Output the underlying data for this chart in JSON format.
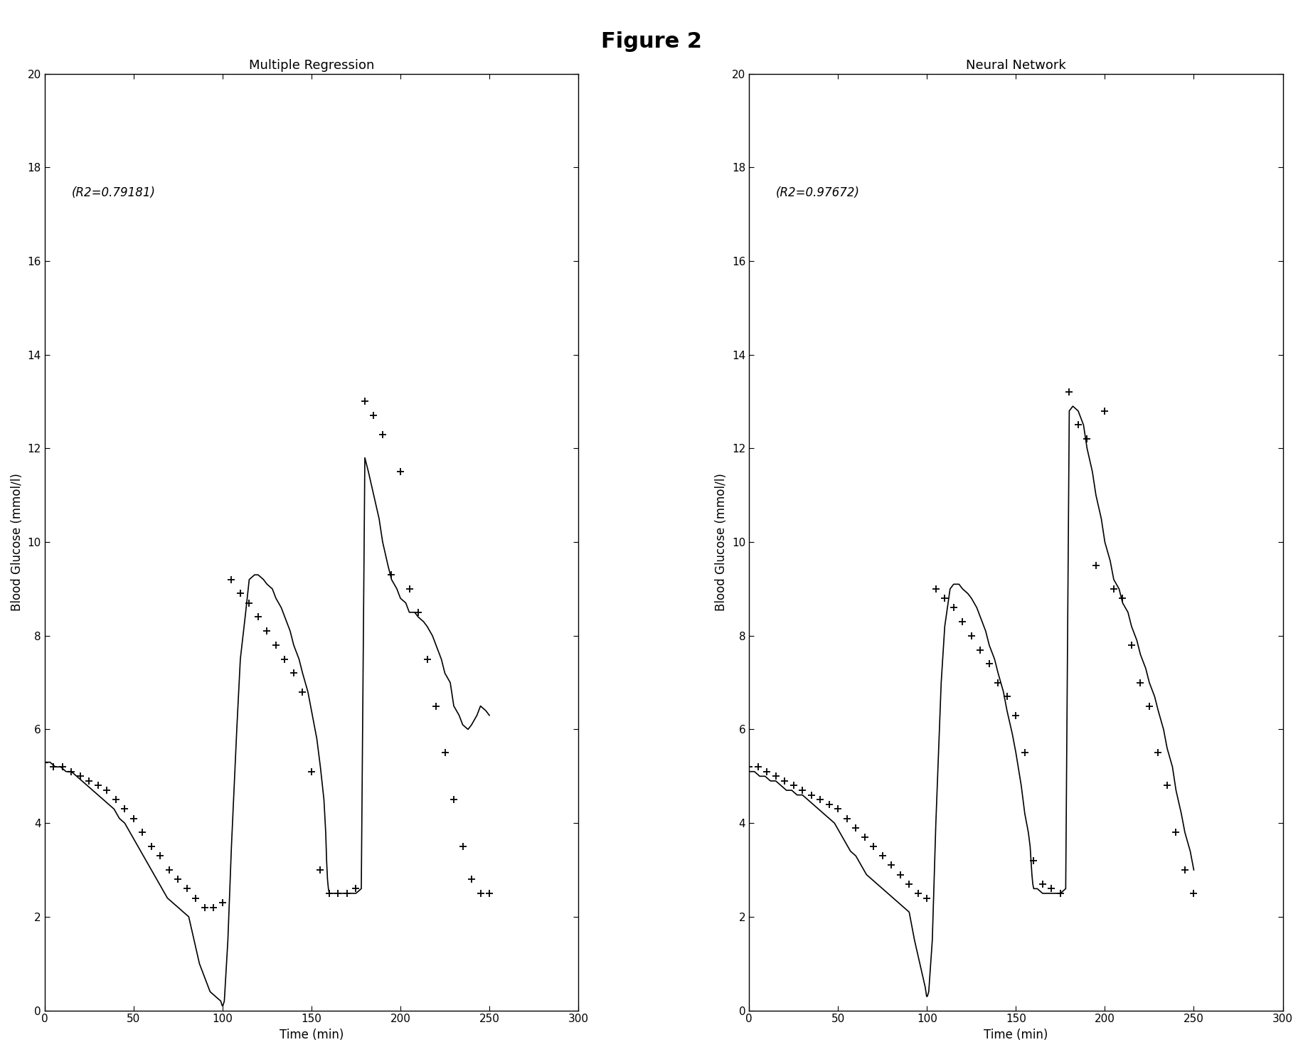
{
  "title": "Figure 2",
  "plot1_title": "Multiple Regression",
  "plot2_title": "Neural Network",
  "r2_label1": "(R2=0.79181)",
  "r2_label2": "(R2=0.97672)",
  "xlabel": "Time (min)",
  "ylabel": "Blood Glucose (mmol/l)",
  "xlim": [
    0,
    300
  ],
  "ylim": [
    0,
    20
  ],
  "xticks": [
    0,
    50,
    100,
    150,
    200,
    250,
    300
  ],
  "yticks": [
    0,
    2,
    4,
    6,
    8,
    10,
    12,
    14,
    16,
    18,
    20
  ],
  "line_color": "#000000",
  "marker_color": "#000000",
  "background_color": "#ffffff",
  "title_fontsize": 22,
  "subtitle_fontsize": 13,
  "label_fontsize": 12,
  "tick_fontsize": 11,
  "annotation_fontsize": 12,
  "mr_line_x": [
    0,
    3,
    6,
    9,
    12,
    15,
    18,
    21,
    24,
    27,
    30,
    33,
    36,
    39,
    42,
    45,
    48,
    51,
    54,
    57,
    60,
    63,
    66,
    69,
    72,
    75,
    78,
    81,
    84,
    87,
    90,
    93,
    96,
    99,
    99.8,
    100.2,
    101,
    103,
    105,
    108,
    110,
    113,
    115,
    118,
    120,
    123,
    125,
    128,
    130,
    133,
    135,
    138,
    140,
    143,
    145,
    148,
    150,
    153,
    155,
    157,
    158,
    158.5,
    159,
    159.5,
    160,
    162,
    165,
    168,
    170,
    173,
    175,
    178,
    180,
    182,
    185,
    188,
    190,
    193,
    195,
    198,
    200,
    203,
    205,
    208,
    210,
    213,
    215,
    218,
    220,
    223,
    225,
    228,
    230,
    233,
    235,
    238,
    240,
    243,
    245,
    248,
    250
  ],
  "mr_line_y": [
    5.3,
    5.3,
    5.2,
    5.2,
    5.1,
    5.1,
    5.0,
    4.9,
    4.8,
    4.7,
    4.6,
    4.5,
    4.4,
    4.3,
    4.1,
    4.0,
    3.8,
    3.6,
    3.4,
    3.2,
    3.0,
    2.8,
    2.6,
    2.4,
    2.3,
    2.2,
    2.1,
    2.0,
    1.5,
    1.0,
    0.7,
    0.4,
    0.3,
    0.2,
    0.1,
    0.1,
    0.2,
    1.5,
    3.5,
    6.0,
    7.5,
    8.5,
    9.2,
    9.3,
    9.3,
    9.2,
    9.1,
    9.0,
    8.8,
    8.6,
    8.4,
    8.1,
    7.8,
    7.5,
    7.2,
    6.8,
    6.4,
    5.8,
    5.2,
    4.5,
    3.8,
    3.2,
    2.8,
    2.6,
    2.5,
    2.5,
    2.5,
    2.5,
    2.5,
    2.5,
    2.5,
    2.6,
    11.8,
    11.5,
    11.0,
    10.5,
    10.0,
    9.5,
    9.2,
    9.0,
    8.8,
    8.7,
    8.5,
    8.5,
    8.4,
    8.3,
    8.2,
    8.0,
    7.8,
    7.5,
    7.2,
    7.0,
    6.5,
    6.3,
    6.1,
    6.0,
    6.1,
    6.3,
    6.5,
    6.4,
    6.3
  ],
  "mr_pts_x": [
    0,
    5,
    10,
    15,
    20,
    25,
    30,
    35,
    40,
    45,
    50,
    55,
    60,
    65,
    70,
    75,
    80,
    85,
    90,
    95,
    100,
    105,
    110,
    115,
    120,
    125,
    130,
    135,
    140,
    145,
    150,
    155,
    160,
    165,
    170,
    175,
    180,
    185,
    190,
    195,
    200,
    205,
    210,
    215,
    220,
    225,
    230,
    235,
    240,
    245,
    250
  ],
  "mr_pts_y": [
    5.3,
    5.2,
    5.2,
    5.1,
    5.0,
    4.9,
    4.8,
    4.7,
    4.5,
    4.3,
    4.1,
    3.8,
    3.5,
    3.3,
    3.0,
    2.8,
    2.6,
    2.4,
    2.2,
    2.2,
    2.3,
    9.2,
    8.9,
    8.7,
    8.4,
    8.1,
    7.8,
    7.5,
    7.2,
    6.8,
    5.1,
    3.0,
    2.5,
    2.5,
    2.5,
    2.6,
    13.0,
    12.7,
    12.3,
    9.3,
    11.5,
    9.0,
    8.5,
    7.5,
    6.5,
    5.5,
    4.5,
    3.5,
    2.8,
    2.5,
    2.5
  ],
  "nn_line_x": [
    0,
    3,
    6,
    9,
    12,
    15,
    18,
    21,
    24,
    27,
    30,
    33,
    36,
    39,
    42,
    45,
    48,
    51,
    54,
    57,
    60,
    63,
    66,
    69,
    72,
    75,
    78,
    81,
    84,
    87,
    90,
    93,
    96,
    99,
    99.8,
    100.2,
    101,
    103,
    105,
    108,
    110,
    113,
    115,
    118,
    120,
    123,
    125,
    128,
    130,
    133,
    135,
    138,
    140,
    143,
    145,
    148,
    150,
    153,
    155,
    157,
    158,
    158.5,
    159,
    159.5,
    160,
    162,
    165,
    168,
    170,
    173,
    175,
    178,
    180,
    182,
    185,
    188,
    190,
    193,
    195,
    198,
    200,
    203,
    205,
    208,
    210,
    213,
    215,
    218,
    220,
    223,
    225,
    228,
    230,
    233,
    235,
    238,
    240,
    243,
    245,
    248,
    250
  ],
  "nn_line_y": [
    5.1,
    5.1,
    5.0,
    5.0,
    4.9,
    4.9,
    4.8,
    4.7,
    4.7,
    4.6,
    4.6,
    4.5,
    4.4,
    4.3,
    4.2,
    4.1,
    4.0,
    3.8,
    3.6,
    3.4,
    3.3,
    3.1,
    2.9,
    2.8,
    2.7,
    2.6,
    2.5,
    2.4,
    2.3,
    2.2,
    2.1,
    1.5,
    1.0,
    0.5,
    0.3,
    0.3,
    0.4,
    1.5,
    4.0,
    7.0,
    8.2,
    9.0,
    9.1,
    9.1,
    9.0,
    8.9,
    8.8,
    8.6,
    8.4,
    8.1,
    7.8,
    7.5,
    7.2,
    6.8,
    6.4,
    5.9,
    5.5,
    4.8,
    4.2,
    3.8,
    3.5,
    3.2,
    2.9,
    2.7,
    2.6,
    2.6,
    2.5,
    2.5,
    2.5,
    2.5,
    2.5,
    2.6,
    12.8,
    12.9,
    12.8,
    12.5,
    12.0,
    11.5,
    11.0,
    10.5,
    10.0,
    9.6,
    9.2,
    9.0,
    8.7,
    8.5,
    8.2,
    7.9,
    7.6,
    7.3,
    7.0,
    6.7,
    6.4,
    6.0,
    5.6,
    5.2,
    4.7,
    4.2,
    3.8,
    3.4,
    3.0
  ],
  "nn_pts_x": [
    0,
    5,
    10,
    15,
    20,
    25,
    30,
    35,
    40,
    45,
    50,
    55,
    60,
    65,
    70,
    75,
    80,
    85,
    90,
    95,
    100,
    105,
    110,
    115,
    120,
    125,
    130,
    135,
    140,
    145,
    150,
    155,
    160,
    165,
    170,
    175,
    180,
    185,
    190,
    195,
    200,
    205,
    210,
    215,
    220,
    225,
    230,
    235,
    240,
    245,
    250
  ],
  "nn_pts_y": [
    5.2,
    5.2,
    5.1,
    5.0,
    4.9,
    4.8,
    4.7,
    4.6,
    4.5,
    4.4,
    4.3,
    4.1,
    3.9,
    3.7,
    3.5,
    3.3,
    3.1,
    2.9,
    2.7,
    2.5,
    2.4,
    9.0,
    8.8,
    8.6,
    8.3,
    8.0,
    7.7,
    7.4,
    7.0,
    6.7,
    6.3,
    5.5,
    3.2,
    2.7,
    2.6,
    2.5,
    13.2,
    12.5,
    12.2,
    9.5,
    12.8,
    9.0,
    8.8,
    7.8,
    7.0,
    6.5,
    5.5,
    4.8,
    3.8,
    3.0,
    2.5
  ]
}
